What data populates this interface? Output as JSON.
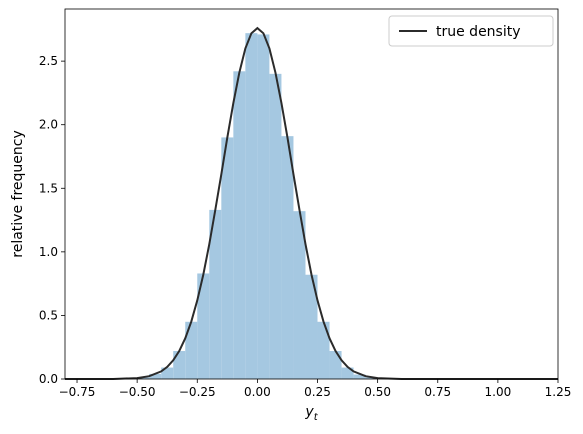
{
  "chart_data": [
    {
      "type": "histogram",
      "bins": [
        -0.55,
        -0.5,
        -0.45,
        -0.4,
        -0.35,
        -0.3,
        -0.25,
        -0.2,
        -0.15,
        -0.1,
        -0.05,
        0,
        0.05,
        0.1,
        0.15,
        0.2,
        0.25,
        0.3,
        0.35,
        0.4,
        0.45,
        0.5,
        0.55
      ],
      "values": [
        0.004,
        0.012,
        0.04,
        0.09,
        0.22,
        0.45,
        0.83,
        1.33,
        1.9,
        2.42,
        2.72,
        2.71,
        2.4,
        1.91,
        1.32,
        0.82,
        0.45,
        0.22,
        0.09,
        0.035,
        0.012,
        0.003
      ],
      "color": "#a5c8e1",
      "xlim": [
        -0.8,
        1.25
      ],
      "ylim": [
        0,
        2.91
      ],
      "xticks": [
        {
          "value": -0.75,
          "label": "−0.75"
        },
        {
          "value": -0.5,
          "label": "−0.50"
        },
        {
          "value": -0.25,
          "label": "−0.25"
        },
        {
          "value": 0,
          "label": "0.00"
        },
        {
          "value": 0.25,
          "label": "0.25"
        },
        {
          "value": 0.5,
          "label": "0.50"
        },
        {
          "value": 0.75,
          "label": "0.75"
        },
        {
          "value": 1,
          "label": "1.00"
        },
        {
          "value": 1.25,
          "label": "1.25"
        }
      ],
      "yticks": [
        {
          "value": 0,
          "label": "0.0"
        },
        0.5,
        {
          "value": 1,
          "label": "1.0"
        },
        1.5,
        {
          "value": 2,
          "label": "2.0"
        },
        2.5
      ],
      "xlabel": "y",
      "xlabel_subscript": "t",
      "ylabel": "relative frequency"
    },
    {
      "type": "line",
      "x": [
        -0.8,
        -0.6,
        -0.5,
        -0.45,
        -0.4,
        -0.375,
        -0.35,
        -0.325,
        -0.3,
        -0.275,
        -0.25,
        -0.225,
        -0.2,
        -0.175,
        -0.15,
        -0.125,
        -0.1,
        -0.075,
        -0.05,
        -0.025,
        0,
        0.025,
        0.05,
        0.075,
        0.1,
        0.125,
        0.15,
        0.175,
        0.2,
        0.225,
        0.25,
        0.275,
        0.3,
        0.325,
        0.35,
        0.375,
        0.4,
        0.45,
        0.5,
        0.6,
        0.8,
        1.0,
        1.25
      ],
      "series": [
        {
          "name": "true density",
          "color": "#2b2b2b",
          "values": [
            0,
            0.0005,
            0.007,
            0.022,
            0.06,
            0.095,
            0.147,
            0.22,
            0.32,
            0.451,
            0.618,
            0.82,
            1.06,
            1.33,
            1.61,
            1.9,
            2.17,
            2.41,
            2.6,
            2.719,
            2.76,
            2.719,
            2.6,
            2.41,
            2.17,
            1.9,
            1.61,
            1.33,
            1.06,
            0.82,
            0.618,
            0.451,
            0.32,
            0.22,
            0.147,
            0.095,
            0.06,
            0.022,
            0.007,
            0.0005,
            0,
            0,
            0
          ]
        }
      ],
      "legend": "upper right"
    }
  ]
}
